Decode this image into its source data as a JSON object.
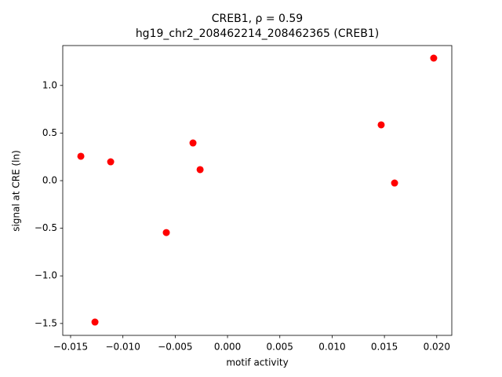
{
  "chart_data": {
    "type": "scatter",
    "title": "CREB1, ρ = 0.59",
    "subtitle": "hg19_chr2_208462214_208462365 (CREB1)",
    "x_label": "motif activity",
    "y_label": "signal at CRE (ln)",
    "color": "#ff0000",
    "grid": false,
    "x": [
      -0.01402,
      -0.01267,
      -0.01117,
      -0.00585,
      -0.0033,
      -0.00262,
      0.01469,
      0.01597,
      0.01971
    ],
    "values": [
      0.256,
      -1.485,
      0.198,
      -0.545,
      0.396,
      0.116,
      0.586,
      -0.025,
      1.287
    ],
    "xlim": [
      -0.01575,
      0.02144
    ],
    "ylim": [
      -1.625,
      1.419
    ],
    "xticks": [
      {
        "value": -0.015,
        "label": "−0.015"
      },
      {
        "value": -0.01,
        "label": "−0.010"
      },
      {
        "value": -0.005,
        "label": "−0.005"
      },
      {
        "value": 0,
        "label": "0.000"
      },
      0.005,
      {
        "value": 0.01,
        "label": "0.010"
      },
      0.015,
      {
        "value": 0.02,
        "label": "0.020"
      }
    ],
    "yticks": [
      {
        "value": -1.5,
        "label": "−1.5"
      },
      {
        "value": -1,
        "label": "−1.0"
      },
      {
        "value": -0.5,
        "label": "−0.5"
      },
      {
        "value": 0,
        "label": "0.0"
      },
      0.5,
      {
        "value": 1,
        "label": "1.0"
      }
    ]
  }
}
